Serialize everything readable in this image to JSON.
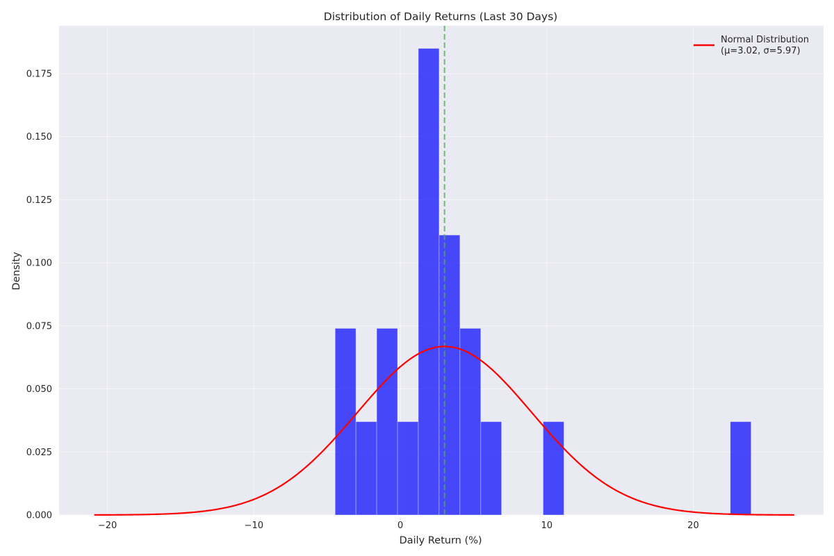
{
  "chart_data": {
    "type": "histogram",
    "title": "Distribution of Daily Returns (Last 30 Days)",
    "xlabel": "Daily Return (%)",
    "ylabel": "Density",
    "xlim": [
      -23.3,
      28.9
    ],
    "ylim": [
      0,
      0.194
    ],
    "xticks": [
      -20,
      -10,
      0,
      10,
      20
    ],
    "yticks": [
      0.0,
      0.025,
      0.05,
      0.075,
      0.1,
      0.125,
      0.15,
      0.175
    ],
    "grid": true,
    "bins": [
      {
        "x0": -4.45,
        "x1": -3.03,
        "density": 0.074
      },
      {
        "x0": -3.03,
        "x1": -1.61,
        "density": 0.037
      },
      {
        "x0": -1.61,
        "x1": -0.19,
        "density": 0.074
      },
      {
        "x0": -0.19,
        "x1": 1.23,
        "density": 0.037
      },
      {
        "x0": 1.23,
        "x1": 2.65,
        "density": 0.185
      },
      {
        "x0": 2.65,
        "x1": 4.07,
        "density": 0.111
      },
      {
        "x0": 4.07,
        "x1": 5.49,
        "density": 0.074
      },
      {
        "x0": 5.49,
        "x1": 6.91,
        "density": 0.037
      },
      {
        "x0": 9.75,
        "x1": 11.17,
        "density": 0.037
      },
      {
        "x0": 22.53,
        "x1": 23.95,
        "density": 0.037
      }
    ],
    "bar_color": "#0000ff",
    "bar_opacity": 0.7,
    "normal_curve": {
      "mu": 3.02,
      "sigma": 5.97,
      "x_range": [
        -20.9,
        26.9
      ],
      "color": "#ff0000"
    },
    "mean_line": {
      "x": 3.02,
      "color": "#4caf50"
    },
    "legend": {
      "position": "top-right",
      "entries": [
        {
          "line1": "Normal Distribution",
          "line2": "(μ=3.02, σ=5.97)",
          "color": "#ff0000"
        }
      ]
    },
    "background_color": "#eaeaf2"
  }
}
